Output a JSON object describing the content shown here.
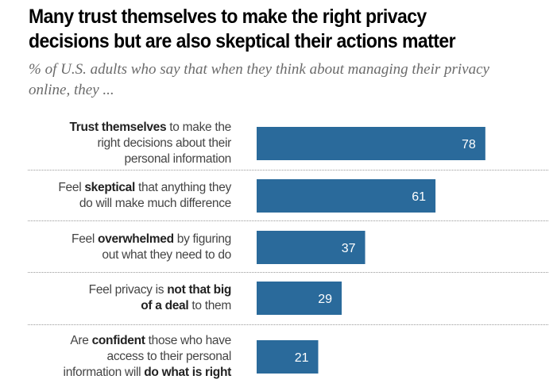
{
  "chart_data": {
    "type": "bar",
    "orientation": "horizontal",
    "title": "Many trust themselves to make the right privacy decisions but are also skeptical their actions matter",
    "title_lines": [
      "Many trust themselves to make the right privacy",
      "decisions but are also skeptical their actions matter"
    ],
    "subtitle": "% of U.S. adults who say that when they think about managing their privacy online, they ...",
    "subtitle_lines": [
      "% of U.S. adults who say that when they think about managing their privacy",
      "online, they ..."
    ],
    "xlabel": "",
    "ylabel": "",
    "xlim": [
      0,
      100
    ],
    "grid": false,
    "bar_color": "#2a6a9b",
    "categories": [
      "Trust themselves to make the right decisions about their personal information",
      "Feel skeptical that anything they do will make much difference",
      "Feel overwhelmed by figuring out what they need to do",
      "Feel privacy is not that big of a deal to them",
      "Are confident those who have access to their personal information will do what is right"
    ],
    "category_lines": [
      [
        [
          {
            "t": "Trust themselves",
            "b": true
          },
          {
            "t": " to make the",
            "b": false
          }
        ],
        [
          {
            "t": "right decisions about their",
            "b": false
          }
        ],
        [
          {
            "t": "personal information",
            "b": false
          }
        ]
      ],
      [
        [
          {
            "t": "Feel ",
            "b": false
          },
          {
            "t": "skeptical",
            "b": true
          },
          {
            "t": " that anything they",
            "b": false
          }
        ],
        [
          {
            "t": "do will make much difference",
            "b": false
          }
        ]
      ],
      [
        [
          {
            "t": "Feel ",
            "b": false
          },
          {
            "t": "overwhelmed",
            "b": true
          },
          {
            "t": " by figuring",
            "b": false
          }
        ],
        [
          {
            "t": "out what they need to do",
            "b": false
          }
        ]
      ],
      [
        [
          {
            "t": "Feel privacy is ",
            "b": false
          },
          {
            "t": "not that big",
            "b": true
          }
        ],
        [
          {
            "t": "of a deal",
            "b": true
          },
          {
            "t": " to them",
            "b": false
          }
        ]
      ],
      [
        [
          {
            "t": "Are ",
            "b": false
          },
          {
            "t": "confident",
            "b": true
          },
          {
            "t": " those who have",
            "b": false
          }
        ],
        [
          {
            "t": "access to their personal",
            "b": false
          }
        ],
        [
          {
            "t": "information will ",
            "b": false
          },
          {
            "t": "do what is right",
            "b": true
          }
        ]
      ]
    ],
    "values": [
      78,
      61,
      37,
      29,
      21
    ]
  }
}
